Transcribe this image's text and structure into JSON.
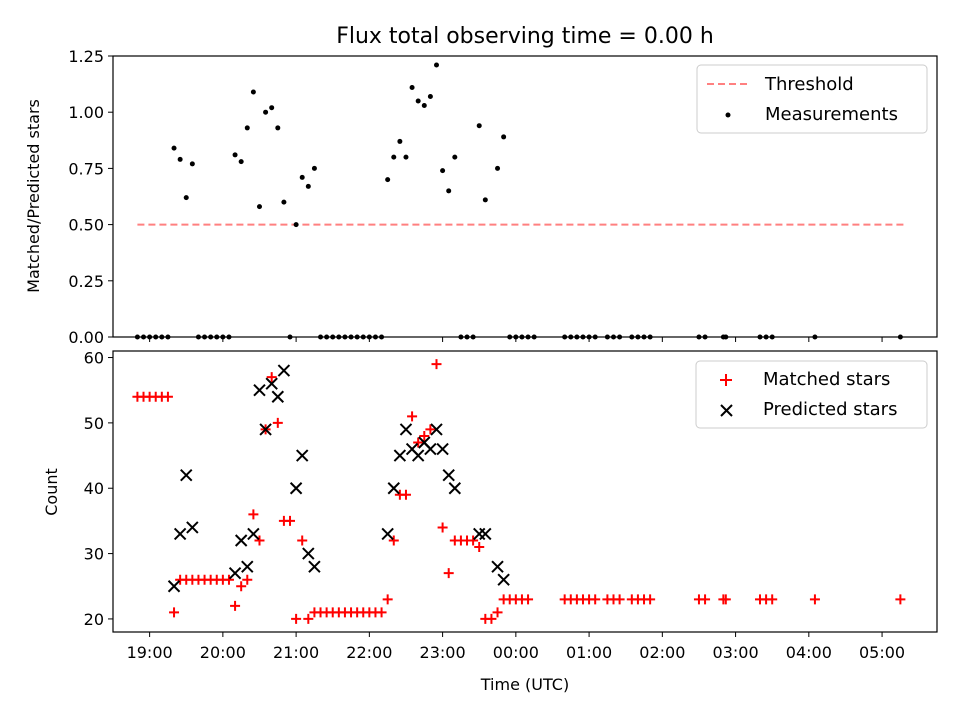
{
  "chart_data": [
    {
      "type": "scatter",
      "title": "Flux total observing time = 0.00 h",
      "xlabel": "",
      "ylabel": "Matched/Predicted stars",
      "xlim": [
        "18:30",
        "05:45"
      ],
      "ylim": [
        0,
        1.25
      ],
      "yticks": [
        "0.00",
        "0.25",
        "0.50",
        "0.75",
        "1.00",
        "1.25"
      ],
      "legend": {
        "position": "top-right",
        "entries": [
          "Threshold",
          "Measurements"
        ]
      },
      "threshold": {
        "name": "Threshold",
        "color": "#ff8080",
        "style": "dashed",
        "x": [
          "18:50",
          "05:20"
        ],
        "y": 0.5
      },
      "series": [
        {
          "name": "Measurements",
          "color": "#000000",
          "points": [
            [
              "19:20",
              0.84
            ],
            [
              "19:25",
              0.79
            ],
            [
              "19:30",
              0.62
            ],
            [
              "19:35",
              0.77
            ],
            [
              "20:10",
              0.81
            ],
            [
              "20:15",
              0.78
            ],
            [
              "20:20",
              0.93
            ],
            [
              "20:25",
              1.09
            ],
            [
              "20:30",
              0.58
            ],
            [
              "20:35",
              1.0
            ],
            [
              "20:40",
              1.02
            ],
            [
              "20:45",
              0.93
            ],
            [
              "20:50",
              0.6
            ],
            [
              "21:00",
              0.5
            ],
            [
              "21:05",
              0.71
            ],
            [
              "21:10",
              0.67
            ],
            [
              "21:15",
              0.75
            ],
            [
              "22:15",
              0.7
            ],
            [
              "22:20",
              0.8
            ],
            [
              "22:25",
              0.87
            ],
            [
              "22:30",
              0.8
            ],
            [
              "22:35",
              1.11
            ],
            [
              "22:40",
              1.05
            ],
            [
              "22:45",
              1.03
            ],
            [
              "22:50",
              1.07
            ],
            [
              "22:55",
              1.21
            ],
            [
              "23:00",
              0.74
            ],
            [
              "23:05",
              0.65
            ],
            [
              "23:10",
              0.8
            ],
            [
              "23:30",
              0.94
            ],
            [
              "23:35",
              0.61
            ],
            [
              "23:45",
              0.75
            ],
            [
              "23:50",
              0.89
            ],
            [
              "18:50",
              0
            ],
            [
              "18:55",
              0
            ],
            [
              "19:00",
              0
            ],
            [
              "19:05",
              0
            ],
            [
              "19:10",
              0
            ],
            [
              "19:15",
              0
            ],
            [
              "19:40",
              0
            ],
            [
              "19:45",
              0
            ],
            [
              "19:50",
              0
            ],
            [
              "19:55",
              0
            ],
            [
              "20:00",
              0
            ],
            [
              "20:05",
              0
            ],
            [
              "20:55",
              0
            ],
            [
              "21:20",
              0
            ],
            [
              "21:25",
              0
            ],
            [
              "21:30",
              0
            ],
            [
              "21:35",
              0
            ],
            [
              "21:40",
              0
            ],
            [
              "21:45",
              0
            ],
            [
              "21:50",
              0
            ],
            [
              "21:55",
              0
            ],
            [
              "22:00",
              0
            ],
            [
              "22:05",
              0
            ],
            [
              "22:10",
              0
            ],
            [
              "23:15",
              0
            ],
            [
              "23:20",
              0
            ],
            [
              "23:25",
              0
            ],
            [
              "23:55",
              0
            ],
            [
              "00:00",
              0
            ],
            [
              "00:05",
              0
            ],
            [
              "00:10",
              0
            ],
            [
              "00:15",
              0
            ],
            [
              "00:40",
              0
            ],
            [
              "00:45",
              0
            ],
            [
              "00:50",
              0
            ],
            [
              "00:55",
              0
            ],
            [
              "01:00",
              0
            ],
            [
              "01:05",
              0
            ],
            [
              "01:15",
              0
            ],
            [
              "01:20",
              0
            ],
            [
              "01:25",
              0
            ],
            [
              "01:35",
              0
            ],
            [
              "01:40",
              0
            ],
            [
              "01:45",
              0
            ],
            [
              "01:50",
              0
            ],
            [
              "02:30",
              0
            ],
            [
              "02:35",
              0
            ],
            [
              "02:50",
              0
            ],
            [
              "02:52",
              0
            ],
            [
              "03:20",
              0
            ],
            [
              "03:25",
              0
            ],
            [
              "03:30",
              0
            ],
            [
              "04:05",
              0
            ],
            [
              "05:15",
              0
            ]
          ]
        }
      ]
    },
    {
      "type": "scatter",
      "title": "",
      "xlabel": "Time (UTC)",
      "ylabel": "Count",
      "xlim": [
        "18:30",
        "05:45"
      ],
      "ylim": [
        18,
        61
      ],
      "yticks": [
        "20",
        "30",
        "40",
        "50",
        "60"
      ],
      "xticks": [
        "19:00",
        "20:00",
        "21:00",
        "22:00",
        "23:00",
        "00:00",
        "01:00",
        "02:00",
        "03:00",
        "04:00",
        "05:00"
      ],
      "legend": {
        "position": "top-right",
        "entries": [
          "Matched stars",
          "Predicted stars"
        ]
      },
      "series": [
        {
          "name": "Matched stars",
          "marker": "plus",
          "color": "#ff0000",
          "points": [
            [
              "18:50",
              54
            ],
            [
              "18:55",
              54
            ],
            [
              "19:00",
              54
            ],
            [
              "19:05",
              54
            ],
            [
              "19:10",
              54
            ],
            [
              "19:15",
              54
            ],
            [
              "19:20",
              21
            ],
            [
              "19:25",
              26
            ],
            [
              "19:30",
              26
            ],
            [
              "19:35",
              26
            ],
            [
              "19:40",
              26
            ],
            [
              "19:45",
              26
            ],
            [
              "19:50",
              26
            ],
            [
              "19:55",
              26
            ],
            [
              "20:00",
              26
            ],
            [
              "20:05",
              26
            ],
            [
              "20:10",
              22
            ],
            [
              "20:15",
              25
            ],
            [
              "20:20",
              26
            ],
            [
              "20:25",
              36
            ],
            [
              "20:30",
              32
            ],
            [
              "20:35",
              49
            ],
            [
              "20:40",
              57
            ],
            [
              "20:45",
              50
            ],
            [
              "20:50",
              35
            ],
            [
              "20:55",
              35
            ],
            [
              "21:00",
              20
            ],
            [
              "21:05",
              32
            ],
            [
              "21:10",
              20
            ],
            [
              "21:15",
              21
            ],
            [
              "21:20",
              21
            ],
            [
              "21:25",
              21
            ],
            [
              "21:30",
              21
            ],
            [
              "21:35",
              21
            ],
            [
              "21:40",
              21
            ],
            [
              "21:45",
              21
            ],
            [
              "21:50",
              21
            ],
            [
              "21:55",
              21
            ],
            [
              "22:00",
              21
            ],
            [
              "22:05",
              21
            ],
            [
              "22:10",
              21
            ],
            [
              "22:15",
              23
            ],
            [
              "22:20",
              32
            ],
            [
              "22:25",
              39
            ],
            [
              "22:30",
              39
            ],
            [
              "22:35",
              51
            ],
            [
              "22:40",
              47
            ],
            [
              "22:45",
              48
            ],
            [
              "22:50",
              49
            ],
            [
              "22:55",
              59
            ],
            [
              "23:00",
              34
            ],
            [
              "23:05",
              27
            ],
            [
              "23:10",
              32
            ],
            [
              "23:15",
              32
            ],
            [
              "23:20",
              32
            ],
            [
              "23:25",
              32
            ],
            [
              "23:30",
              31
            ],
            [
              "23:35",
              20
            ],
            [
              "23:40",
              20
            ],
            [
              "23:45",
              21
            ],
            [
              "23:50",
              23
            ],
            [
              "23:55",
              23
            ],
            [
              "00:00",
              23
            ],
            [
              "00:05",
              23
            ],
            [
              "00:10",
              23
            ],
            [
              "00:40",
              23
            ],
            [
              "00:45",
              23
            ],
            [
              "00:50",
              23
            ],
            [
              "00:55",
              23
            ],
            [
              "01:00",
              23
            ],
            [
              "01:05",
              23
            ],
            [
              "01:15",
              23
            ],
            [
              "01:20",
              23
            ],
            [
              "01:25",
              23
            ],
            [
              "01:35",
              23
            ],
            [
              "01:40",
              23
            ],
            [
              "01:45",
              23
            ],
            [
              "01:50",
              23
            ],
            [
              "02:30",
              23
            ],
            [
              "02:35",
              23
            ],
            [
              "02:50",
              23
            ],
            [
              "02:52",
              23
            ],
            [
              "03:20",
              23
            ],
            [
              "03:25",
              23
            ],
            [
              "03:30",
              23
            ],
            [
              "04:05",
              23
            ],
            [
              "05:15",
              23
            ]
          ]
        },
        {
          "name": "Predicted stars",
          "marker": "x",
          "color": "#000000",
          "points": [
            [
              "19:20",
              25
            ],
            [
              "19:25",
              33
            ],
            [
              "19:30",
              42
            ],
            [
              "19:35",
              34
            ],
            [
              "20:10",
              27
            ],
            [
              "20:15",
              32
            ],
            [
              "20:20",
              28
            ],
            [
              "20:25",
              33
            ],
            [
              "20:30",
              55
            ],
            [
              "20:35",
              49
            ],
            [
              "20:40",
              56
            ],
            [
              "20:45",
              54
            ],
            [
              "20:50",
              58
            ],
            [
              "21:00",
              40
            ],
            [
              "21:05",
              45
            ],
            [
              "21:10",
              30
            ],
            [
              "21:15",
              28
            ],
            [
              "22:15",
              33
            ],
            [
              "22:20",
              40
            ],
            [
              "22:25",
              45
            ],
            [
              "22:30",
              49
            ],
            [
              "22:35",
              46
            ],
            [
              "22:40",
              45
            ],
            [
              "22:45",
              47
            ],
            [
              "22:50",
              46
            ],
            [
              "22:55",
              49
            ],
            [
              "23:00",
              46
            ],
            [
              "23:05",
              42
            ],
            [
              "23:10",
              40
            ],
            [
              "23:30",
              33
            ],
            [
              "23:35",
              33
            ],
            [
              "23:45",
              28
            ],
            [
              "23:50",
              26
            ]
          ]
        }
      ]
    }
  ]
}
